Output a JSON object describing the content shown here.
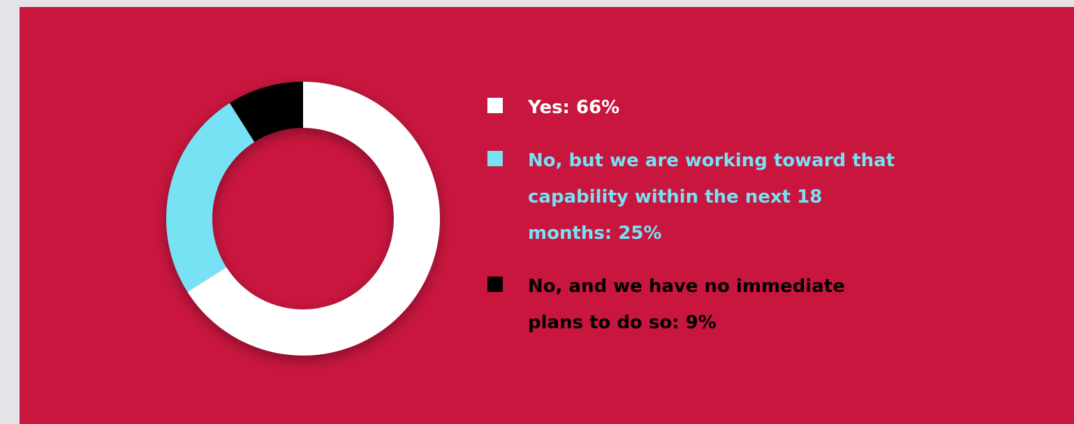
{
  "colors": {
    "background": "#c8163e",
    "page": "#e4e4e8"
  },
  "chart_data": {
    "type": "pie",
    "style": "donut",
    "title": "",
    "slices": [
      {
        "label": "Yes: 66%",
        "value": 66,
        "color": "#ffffff"
      },
      {
        "label": "No, but we are working toward that capability within the next 18 months: 25%",
        "value": 25,
        "color": "#76e2f4"
      },
      {
        "label": "No, and we have no immediate plans to do so: 9%",
        "value": 9,
        "color": "#000000"
      }
    ],
    "legend_position": "right"
  }
}
